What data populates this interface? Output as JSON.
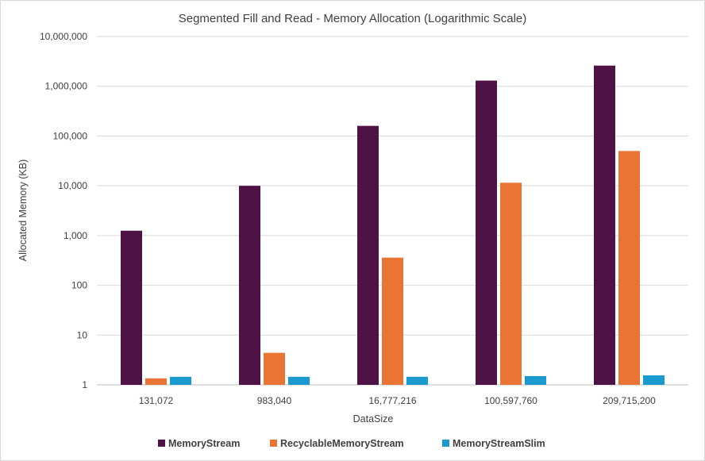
{
  "chart_data": {
    "type": "bar",
    "title": "Segmented Fill and Read - Memory Allocation (Logarithmic Scale)",
    "xlabel": "DataSize",
    "ylabel": "Allocated Memory (KB)",
    "yscale": "log",
    "ylim": [
      1,
      10000000
    ],
    "ytick_labels": [
      "1",
      "10",
      "100",
      "1,000",
      "10,000",
      "100,000",
      "1,000,000",
      "10,000,000"
    ],
    "ytick_values": [
      1,
      10,
      100,
      1000,
      10000,
      100000,
      1000000,
      10000000
    ],
    "categories": [
      "131,072",
      "983,040",
      "16,777,216",
      "100,597,760",
      "209,715,200"
    ],
    "grid": true,
    "legend_position": "bottom",
    "series": [
      {
        "name": "MemoryStream",
        "color": "#4f1246",
        "values": [
          1250,
          10000,
          160000,
          1300000,
          2600000
        ]
      },
      {
        "name": "RecyclableMemoryStream",
        "color": "#ea7433",
        "values": [
          1.35,
          4.4,
          360,
          11500,
          50000
        ]
      },
      {
        "name": "MemoryStreamSlim",
        "color": "#1b9ad0",
        "values": [
          1.45,
          1.45,
          1.45,
          1.5,
          1.55
        ]
      }
    ]
  }
}
